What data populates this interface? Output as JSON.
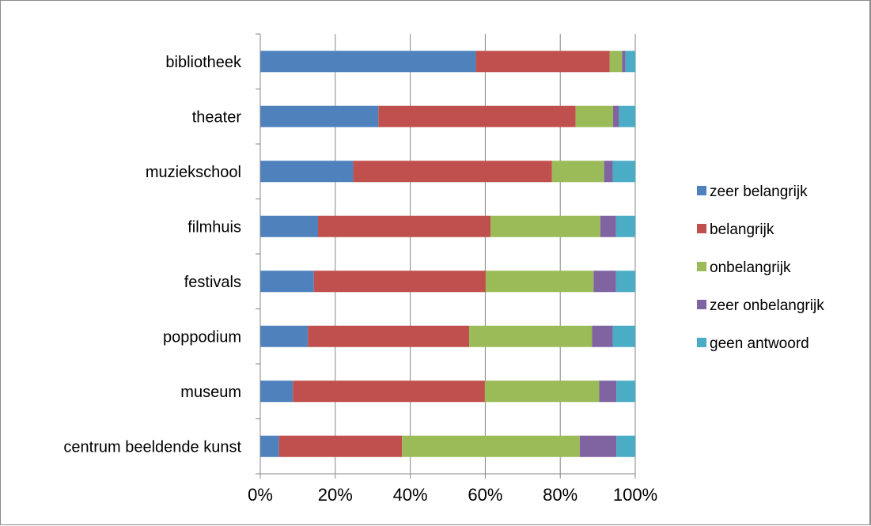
{
  "chart_data": {
    "type": "bar",
    "orientation": "horizontal",
    "stacked": "percent",
    "categories": [
      "bibliotheek",
      "theater",
      "muziekschool",
      "filmhuis",
      "festivals",
      "poppodium",
      "museum",
      "centrum beeldende kunst"
    ],
    "series": [
      {
        "name": "zeer belangrijk",
        "color": "#4F81BD",
        "values": [
          57.5,
          31.5,
          24.8,
          15.4,
          14.3,
          12.7,
          8.7,
          5.0
        ]
      },
      {
        "name": "belangrijk",
        "color": "#C0504D",
        "values": [
          35.7,
          52.6,
          53.0,
          46.0,
          45.8,
          43.0,
          51.2,
          32.8
        ]
      },
      {
        "name": "onbelangrijk",
        "color": "#9BBB59",
        "values": [
          3.3,
          10.0,
          13.9,
          29.3,
          28.8,
          32.8,
          30.5,
          47.4
        ]
      },
      {
        "name": "zeer onbelangrijk",
        "color": "#8064A2",
        "values": [
          0.9,
          1.6,
          2.3,
          4.2,
          6.0,
          5.5,
          4.6,
          9.8
        ]
      },
      {
        "name": "geen antwoord",
        "color": "#4BACC6",
        "values": [
          2.6,
          4.3,
          6.0,
          5.1,
          5.1,
          6.0,
          5.0,
          5.0
        ]
      }
    ],
    "xlim": [
      0,
      100
    ],
    "xticks": [
      "0%",
      "20%",
      "40%",
      "60%",
      "80%",
      "100%"
    ],
    "grid": "vertical",
    "legend": "right"
  }
}
